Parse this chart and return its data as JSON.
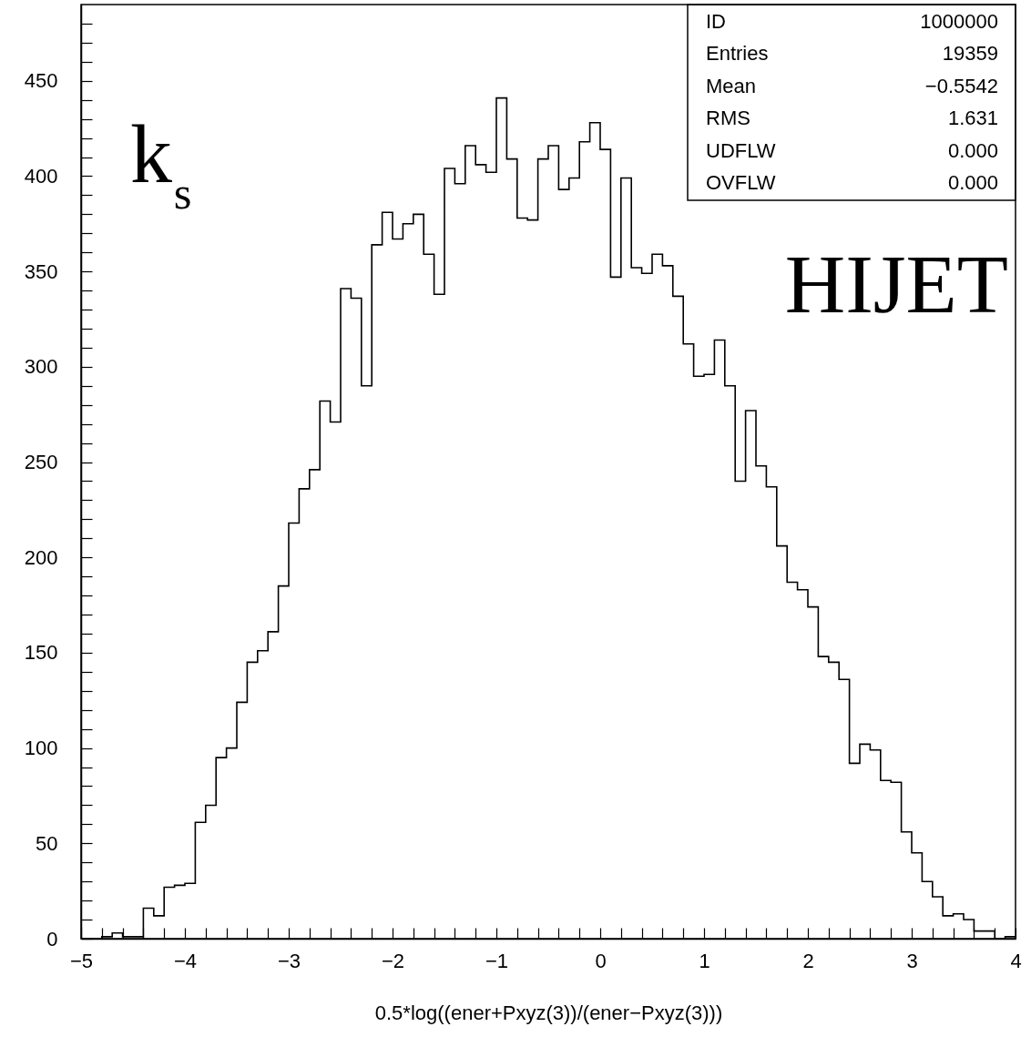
{
  "chart_data": {
    "type": "histogram",
    "xlabel": "0.5*log((ener+Pxyz(3))/(ener−Pxyz(3)))",
    "color": "#000000",
    "bins": [
      -5,
      -4.9,
      -4.8,
      -4.7,
      -4.6,
      -4.5,
      -4.4,
      -4.3,
      -4.2,
      -4.1,
      -4,
      -3.9,
      -3.8,
      -3.7,
      -3.6,
      -3.5,
      -3.4,
      -3.3,
      -3.2,
      -3.1,
      -3,
      -2.9,
      -2.8,
      -2.7,
      -2.6,
      -2.5,
      -2.4,
      -2.3,
      -2.2,
      -2.1,
      -2,
      -1.9,
      -1.8,
      -1.7,
      -1.6,
      -1.5,
      -1.4,
      -1.3,
      -1.2,
      -1.1,
      -1,
      -0.9,
      -0.8,
      -0.7,
      -0.6,
      -0.5,
      -0.4,
      -0.3,
      -0.2,
      -0.1,
      0,
      0.1,
      0.2,
      0.3,
      0.4,
      0.5,
      0.6,
      0.7,
      0.8,
      0.9,
      1,
      1.1,
      1.2,
      1.3,
      1.4,
      1.5,
      1.6,
      1.7,
      1.8,
      1.9,
      2,
      2.1,
      2.2,
      2.3,
      2.4,
      2.5,
      2.6,
      2.7,
      2.8,
      2.9,
      3,
      3.1,
      3.2,
      3.3,
      3.4,
      3.5,
      3.6,
      3.7,
      3.8,
      3.9,
      4
    ],
    "values": [
      0,
      0,
      1,
      3,
      1,
      1,
      16,
      12,
      27,
      28,
      29,
      61,
      70,
      95,
      100,
      124,
      145,
      151,
      161,
      185,
      218,
      236,
      246,
      282,
      271,
      341,
      336,
      290,
      364,
      381,
      367,
      375,
      380,
      359,
      338,
      404,
      396,
      416,
      406,
      402,
      441,
      409,
      378,
      377,
      409,
      416,
      393,
      399,
      418,
      428,
      414,
      347,
      399,
      352,
      349,
      359,
      353,
      337,
      312,
      295,
      296,
      314,
      290,
      240,
      277,
      248,
      237,
      206,
      187,
      183,
      174,
      148,
      145,
      136,
      92,
      102,
      99,
      83,
      82,
      56,
      45,
      30,
      22,
      12,
      13,
      10,
      4,
      4,
      0,
      1
    ],
    "xlim": [
      -5,
      4
    ],
    "xticks": [
      -5,
      {
        "value": -4.8,
        "label": null
      },
      {
        "value": -4.6,
        "label": null
      },
      {
        "value": -4.4,
        "label": null
      },
      {
        "value": -4.2,
        "label": null
      },
      -4,
      {
        "value": -3.8,
        "label": null
      },
      {
        "value": -3.6,
        "label": null
      },
      {
        "value": -3.4,
        "label": null
      },
      {
        "value": -3.2,
        "label": null
      },
      -3,
      {
        "value": -2.8,
        "label": null
      },
      {
        "value": -2.6,
        "label": null
      },
      {
        "value": -2.4,
        "label": null
      },
      {
        "value": -2.2,
        "label": null
      },
      -2,
      {
        "value": -1.8,
        "label": null
      },
      {
        "value": -1.6,
        "label": null
      },
      {
        "value": -1.4,
        "label": null
      },
      {
        "value": -1.2,
        "label": null
      },
      -1,
      {
        "value": -0.8,
        "label": null
      },
      {
        "value": -0.6,
        "label": null
      },
      {
        "value": -0.4,
        "label": null
      },
      {
        "value": -0.2,
        "label": null
      },
      0,
      {
        "value": 0.2,
        "label": null
      },
      {
        "value": 0.4,
        "label": null
      },
      {
        "value": 0.6,
        "label": null
      },
      {
        "value": 0.8,
        "label": null
      },
      1,
      {
        "value": 1.2,
        "label": null
      },
      {
        "value": 1.4,
        "label": null
      },
      {
        "value": 1.6,
        "label": null
      },
      {
        "value": 1.8,
        "label": null
      },
      2,
      {
        "value": 2.2,
        "label": null
      },
      {
        "value": 2.4,
        "label": null
      },
      {
        "value": 2.6,
        "label": null
      },
      {
        "value": 2.8,
        "label": null
      },
      3,
      {
        "value": 3.2,
        "label": null
      },
      {
        "value": 3.4,
        "label": null
      },
      {
        "value": 3.6,
        "label": null
      },
      {
        "value": 3.8,
        "label": null
      },
      4
    ],
    "ylim": [
      0,
      490
    ],
    "yticks": [
      0,
      {
        "value": 10,
        "label": null
      },
      {
        "value": 20,
        "label": null
      },
      {
        "value": 30,
        "label": null
      },
      {
        "value": 40,
        "label": null
      },
      50,
      {
        "value": 60,
        "label": null
      },
      {
        "value": 70,
        "label": null
      },
      {
        "value": 80,
        "label": null
      },
      {
        "value": 90,
        "label": null
      },
      100,
      {
        "value": 110,
        "label": null
      },
      {
        "value": 120,
        "label": null
      },
      {
        "value": 130,
        "label": null
      },
      {
        "value": 140,
        "label": null
      },
      150,
      {
        "value": 160,
        "label": null
      },
      {
        "value": 170,
        "label": null
      },
      {
        "value": 180,
        "label": null
      },
      {
        "value": 190,
        "label": null
      },
      200,
      {
        "value": 210,
        "label": null
      },
      {
        "value": 220,
        "label": null
      },
      {
        "value": 230,
        "label": null
      },
      {
        "value": 240,
        "label": null
      },
      250,
      {
        "value": 260,
        "label": null
      },
      {
        "value": 270,
        "label": null
      },
      {
        "value": 280,
        "label": null
      },
      {
        "value": 290,
        "label": null
      },
      300,
      {
        "value": 310,
        "label": null
      },
      {
        "value": 320,
        "label": null
      },
      {
        "value": 330,
        "label": null
      },
      {
        "value": 340,
        "label": null
      },
      350,
      {
        "value": 360,
        "label": null
      },
      {
        "value": 370,
        "label": null
      },
      {
        "value": 380,
        "label": null
      },
      {
        "value": 390,
        "label": null
      },
      400,
      {
        "value": 410,
        "label": null
      },
      {
        "value": 420,
        "label": null
      },
      {
        "value": 430,
        "label": null
      },
      {
        "value": 440,
        "label": null
      },
      450,
      {
        "value": 460,
        "label": null
      },
      {
        "value": 470,
        "label": null
      },
      {
        "value": 480,
        "label": null
      }
    ],
    "annotations": [
      "ID",
      "1000000",
      "Entries",
      "19359",
      "Mean",
      "−0.5542",
      "RMS",
      "1.631",
      "UDFLW",
      "0.000",
      "OVFLW",
      "0.000",
      "k$_{s}$",
      "HIJET"
    ]
  }
}
